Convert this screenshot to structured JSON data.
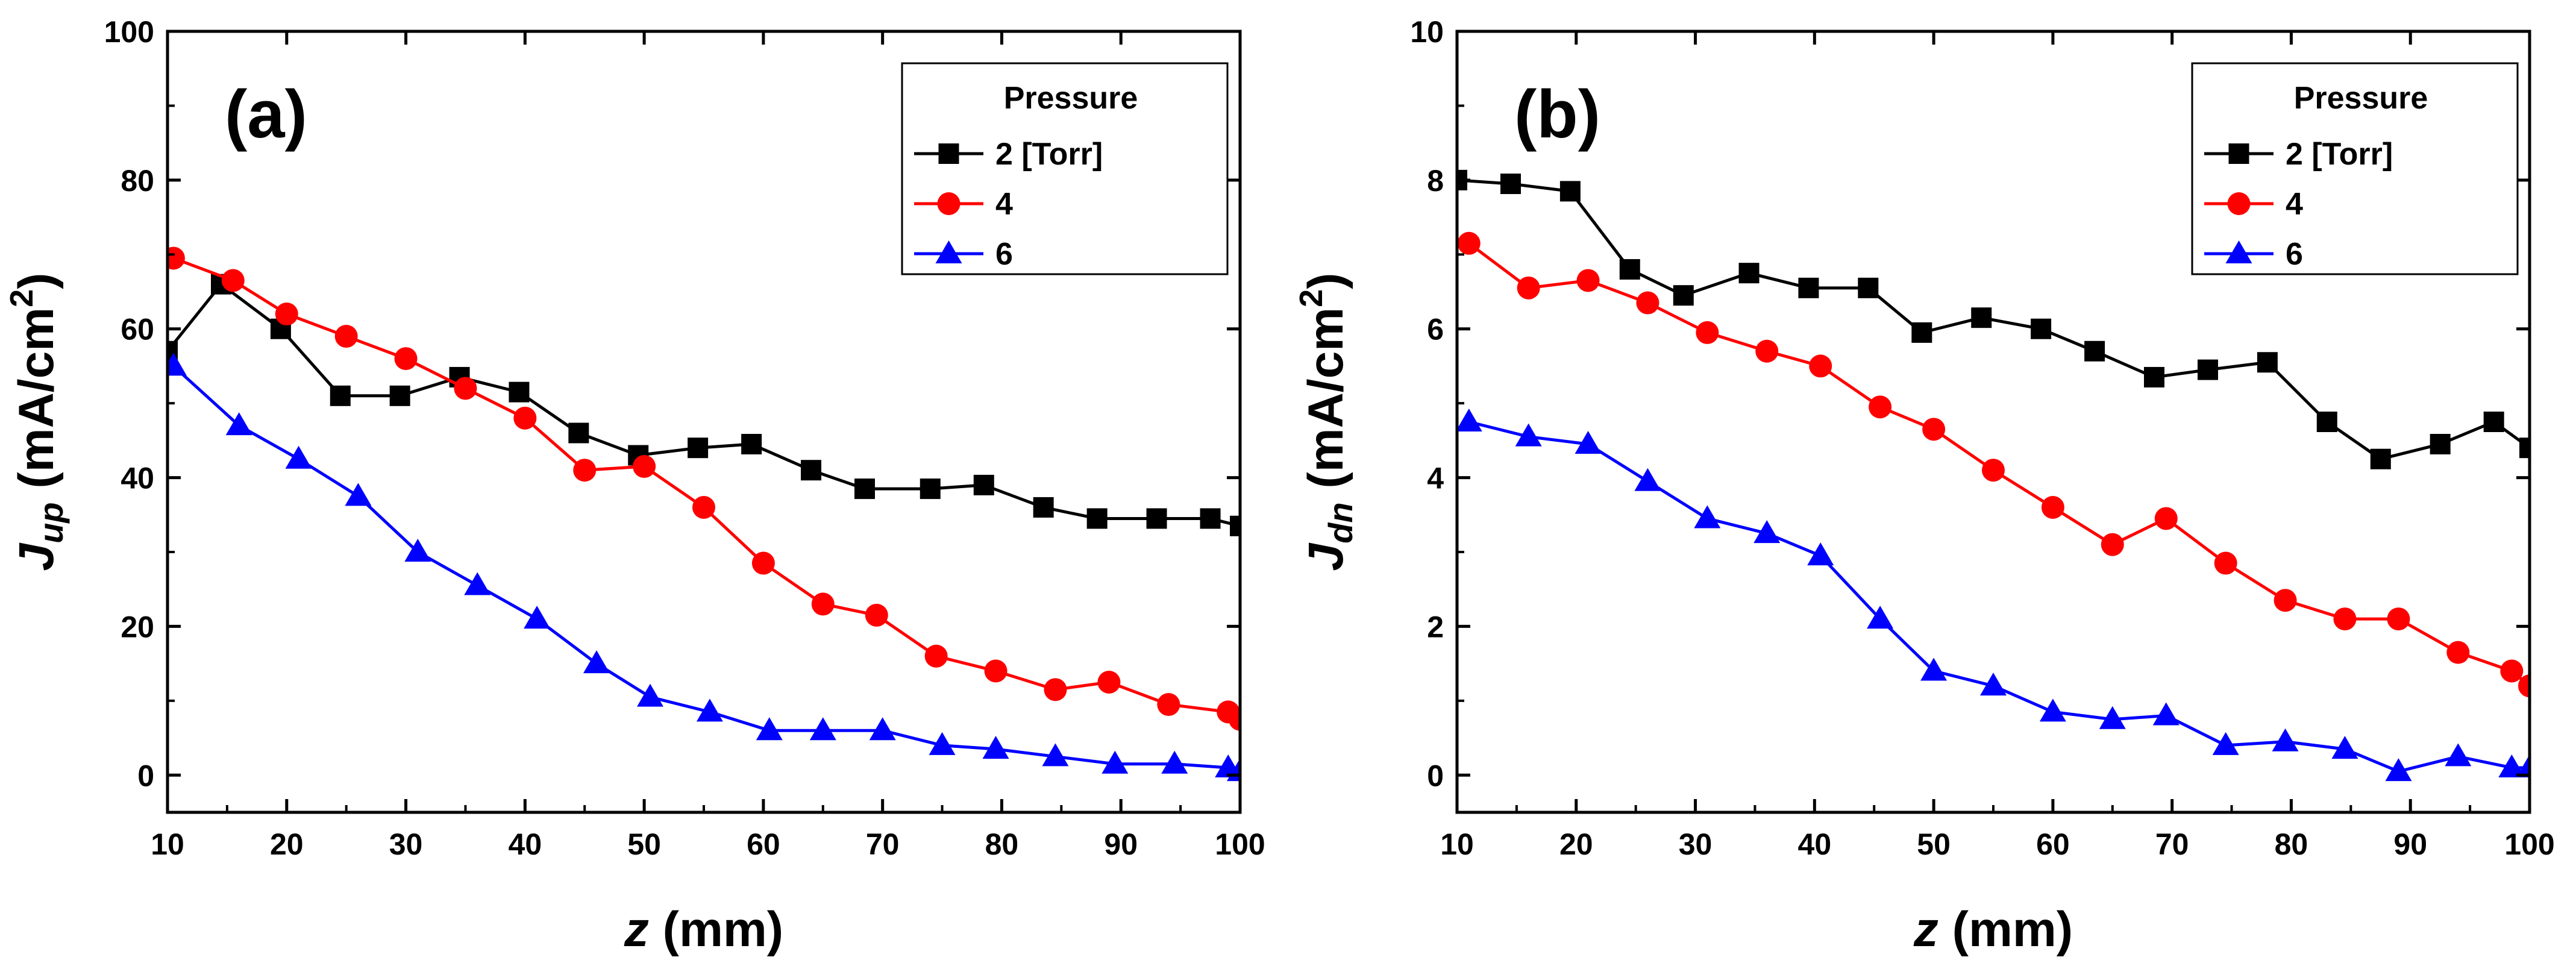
{
  "chart_data": [
    {
      "type": "line",
      "panel_label": "(a)",
      "xlabel": "z (mm)",
      "xlabel_var": "z",
      "xlabel_unit": " (mm)",
      "ylabel": "J_up (mA/cm2)",
      "ylabel_var": "J",
      "ylabel_sub": "up",
      "ylabel_unit": " (mA/cm",
      "ylabel_sup": "2",
      "ylabel_close": ")",
      "xlim": [
        10,
        100
      ],
      "ylim": [
        -5,
        100
      ],
      "xticks": [
        10,
        20,
        30,
        40,
        50,
        60,
        70,
        80,
        90,
        100
      ],
      "yticks": [
        0,
        20,
        40,
        60,
        80,
        100
      ],
      "legend": {
        "title": "Pressure",
        "position": "top-right"
      },
      "series": [
        {
          "name": "2 [Torr]",
          "color": "#000000",
          "marker": "square",
          "x": [
            10,
            14.5,
            19.5,
            24.5,
            29.5,
            34.5,
            39.5,
            44.5,
            49.5,
            54.5,
            59,
            64,
            68.5,
            74,
            78.5,
            83.5,
            88,
            93,
            97.5,
            100
          ],
          "y": [
            57,
            66,
            60,
            51,
            51,
            53.5,
            51.5,
            46,
            43,
            44,
            44.5,
            41,
            38.5,
            38.5,
            39,
            36,
            34.5,
            34.5,
            34.5,
            33.5
          ]
        },
        {
          "name": "4",
          "color": "#ff0000",
          "marker": "circle",
          "x": [
            10.5,
            15.5,
            20,
            25,
            30,
            35,
            40,
            45,
            50,
            55,
            60,
            65,
            69.5,
            74.5,
            79.5,
            84.5,
            89,
            94,
            99,
            100
          ],
          "y": [
            69.5,
            66.5,
            62,
            59,
            56,
            52,
            48,
            41,
            41.5,
            36,
            28.5,
            23,
            21.5,
            16,
            14,
            11.5,
            12.5,
            9.5,
            8.5,
            7.5
          ]
        },
        {
          "name": "6",
          "color": "#0000ff",
          "marker": "triangle",
          "x": [
            10.5,
            16,
            21,
            26,
            31,
            36,
            41,
            46,
            50.5,
            55.5,
            60.5,
            65,
            70,
            75,
            79.5,
            84.5,
            89.5,
            94.5,
            99,
            100
          ],
          "y": [
            55,
            47,
            42.5,
            37.5,
            30,
            25.5,
            21,
            15,
            10.5,
            8.5,
            6,
            6,
            6,
            4,
            3.5,
            2.5,
            1.5,
            1.5,
            1,
            0.5
          ]
        }
      ]
    },
    {
      "type": "line",
      "panel_label": "(b)",
      "xlabel": "z (mm)",
      "xlabel_var": "z",
      "xlabel_unit": " (mm)",
      "ylabel": "J_dn (mA/cm2)",
      "ylabel_var": "J",
      "ylabel_sub": "dn",
      "ylabel_unit": " (mA/cm",
      "ylabel_sup": "2",
      "ylabel_close": ")",
      "xlim": [
        10,
        100
      ],
      "ylim": [
        -0.5,
        10
      ],
      "xticks": [
        10,
        20,
        30,
        40,
        50,
        60,
        70,
        80,
        90,
        100
      ],
      "yticks": [
        0,
        2,
        4,
        6,
        8,
        10
      ],
      "legend": {
        "title": "Pressure",
        "position": "top-right"
      },
      "series": [
        {
          "name": "2 [Torr]",
          "color": "#000000",
          "marker": "square",
          "x": [
            10,
            14.5,
            19.5,
            24.5,
            29,
            34.5,
            39.5,
            44.5,
            49,
            54,
            59,
            63.5,
            68.5,
            73,
            78,
            83,
            87.5,
            92.5,
            97,
            100
          ],
          "y": [
            8.0,
            7.95,
            7.85,
            6.8,
            6.45,
            6.75,
            6.55,
            6.55,
            5.95,
            6.15,
            6.0,
            5.7,
            5.35,
            5.45,
            5.55,
            4.75,
            4.25,
            4.45,
            4.75,
            4.4
          ]
        },
        {
          "name": "4",
          "color": "#ff0000",
          "marker": "circle",
          "x": [
            11,
            16,
            21,
            26,
            31,
            36,
            40.5,
            45.5,
            50,
            55,
            60,
            65,
            69.5,
            74.5,
            79.5,
            84.5,
            89,
            94,
            98.5,
            100
          ],
          "y": [
            7.15,
            6.55,
            6.65,
            6.35,
            5.95,
            5.7,
            5.5,
            4.95,
            4.65,
            4.1,
            3.6,
            3.1,
            3.45,
            2.85,
            2.35,
            2.1,
            2.1,
            1.65,
            1.4,
            1.2
          ]
        },
        {
          "name": "6",
          "color": "#0000ff",
          "marker": "triangle",
          "x": [
            11,
            16,
            21,
            26,
            31,
            36,
            40.5,
            45.5,
            50,
            55,
            60,
            65,
            69.5,
            74.5,
            79.5,
            84.5,
            89,
            94,
            98.5,
            100
          ],
          "y": [
            4.75,
            4.55,
            4.45,
            3.95,
            3.45,
            3.25,
            2.95,
            2.1,
            1.4,
            1.2,
            0.85,
            0.75,
            0.8,
            0.4,
            0.45,
            0.35,
            0.05,
            0.25,
            0.1,
            0.1
          ]
        }
      ]
    }
  ]
}
